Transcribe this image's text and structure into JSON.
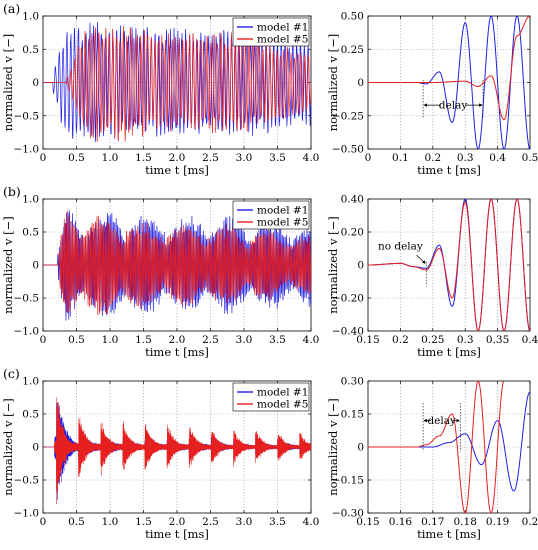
{
  "figure": {
    "rows": [
      {
        "label": "(a)",
        "left": {
          "xlabel": "time t [ms]",
          "ylabel": "normalized v [−]",
          "xlim": [
            0,
            4
          ],
          "ylim": [
            -1,
            1
          ],
          "xticks": [
            "0",
            "0.5",
            "1.0",
            "1.5",
            "2.0",
            "2.5",
            "3.0",
            "3.5",
            "4.0"
          ],
          "yticks": [
            "1.0",
            "0.5",
            "0",
            "−0.5",
            "−1.0"
          ],
          "legend": [
            "model #1",
            "model #5"
          ]
        },
        "right": {
          "xlabel": "time t [ms]",
          "ylabel": "normalized v [−]",
          "xlim": [
            0,
            0.5
          ],
          "ylim": [
            -0.5,
            0.5
          ],
          "xticks": [
            "0",
            "0.1",
            "0.2",
            "0.3",
            "0.4",
            "0.5"
          ],
          "yticks": [
            "0.50",
            "0.25",
            "0",
            "−0.25",
            "−0.50"
          ],
          "annotation": "delay"
        }
      },
      {
        "label": "(b)",
        "left": {
          "xlabel": "time t [ms]",
          "ylabel": "normalized v [−]",
          "xlim": [
            0,
            4
          ],
          "ylim": [
            -1,
            1
          ],
          "xticks": [
            "0",
            "0.5",
            "1.0",
            "1.5",
            "2.0",
            "2.5",
            "3.0",
            "3.5",
            "4.0"
          ],
          "yticks": [
            "1.0",
            "0.5",
            "0",
            "−0.5",
            "−1.0"
          ],
          "legend": [
            "model #1",
            "model #5"
          ]
        },
        "right": {
          "xlabel": "time t [ms]",
          "ylabel": "normalized v [−]",
          "xlim": [
            0.15,
            0.4
          ],
          "ylim": [
            -0.4,
            0.4
          ],
          "xticks": [
            "0.15",
            "0.2",
            "0.25",
            "0.3",
            "0.35",
            "0.4"
          ],
          "yticks": [
            "0.40",
            "0.20",
            "0",
            "−0.20",
            "−0.40"
          ],
          "annotation": "no delay"
        }
      },
      {
        "label": "(c)",
        "left": {
          "xlabel": "time t [ms]",
          "ylabel": "normalized v [−]",
          "xlim": [
            0,
            4
          ],
          "ylim": [
            -1,
            1
          ],
          "xticks": [
            "0",
            "0.5",
            "1.0",
            "1.5",
            "2.0",
            "2.5",
            "3.0",
            "3.5",
            "4.0"
          ],
          "yticks": [
            "1.0",
            "0.5",
            "0",
            "−0.5",
            "−1.0"
          ],
          "legend": [
            "model #1",
            "model #5"
          ]
        },
        "right": {
          "xlabel": "time t [ms]",
          "ylabel": "normalized v [−]",
          "xlim": [
            0.15,
            0.2
          ],
          "ylim": [
            -0.3,
            0.3
          ],
          "xticks": [
            "0.15",
            "0.16",
            "0.17",
            "0.18",
            "0.19",
            "0.2"
          ],
          "yticks": [
            "0.30",
            "0.15",
            "0",
            "−0.15",
            "−0.30"
          ],
          "annotation": "delay"
        }
      }
    ]
  },
  "colors": {
    "model1": "#1f1fe6",
    "model5": "#e61f1f",
    "grid": "#9a9a9a"
  },
  "chart_data": [
    {
      "panel": "a-left",
      "type": "line",
      "xlim": [
        0,
        4
      ],
      "ylim": [
        -1,
        1
      ],
      "grid": true,
      "legend_position": "top-right",
      "series": [
        {
          "name": "model #1",
          "x": [
            0,
            0.1,
            0.2,
            0.3,
            0.5,
            1.0,
            1.5,
            2.0,
            2.5,
            3.0,
            3.5,
            4.0
          ],
          "y_envelope": [
            0,
            0.1,
            0.3,
            0.75,
            0.95,
            0.9,
            0.85,
            0.85,
            0.8,
            0.85,
            0.75,
            0.7
          ]
        },
        {
          "name": "model #5",
          "x": [
            0,
            0.2,
            0.4,
            0.5,
            0.6,
            1.0,
            1.5,
            2.0,
            2.5,
            3.0,
            3.5,
            4.0
          ],
          "y_envelope": [
            0,
            0,
            0.15,
            0.5,
            0.85,
            0.95,
            0.85,
            0.75,
            0.8,
            0.8,
            0.6,
            0.45
          ]
        }
      ]
    },
    {
      "panel": "a-right",
      "type": "line",
      "xlim": [
        0,
        0.5
      ],
      "ylim": [
        -0.5,
        0.5
      ],
      "grid": true,
      "series": [
        {
          "name": "model #1",
          "x": [
            0,
            0.15,
            0.18,
            0.22,
            0.26,
            0.3,
            0.34,
            0.38,
            0.42,
            0.46,
            0.5
          ],
          "y": [
            0,
            0,
            -0.01,
            0.08,
            -0.3,
            0.45,
            -0.5,
            0.5,
            -0.5,
            0.5,
            -0.5
          ]
        },
        {
          "name": "model #5",
          "x": [
            0,
            0.2,
            0.3,
            0.34,
            0.38,
            0.42,
            0.46,
            0.5
          ],
          "y": [
            0,
            0,
            0.01,
            -0.03,
            0.05,
            -0.28,
            0.35,
            0.5
          ]
        }
      ],
      "annotation": "delay"
    },
    {
      "panel": "b-left",
      "type": "line",
      "xlim": [
        0,
        4
      ],
      "ylim": [
        -1,
        1
      ],
      "grid": true,
      "legend_position": "top-right",
      "series": [
        {
          "name": "model #1",
          "x": [
            0,
            0.2,
            0.35,
            0.6,
            1.0,
            1.5,
            2.0,
            2.5,
            3.0,
            3.5,
            4.0
          ],
          "y_envelope": [
            0,
            0.05,
            0.95,
            0.8,
            0.85,
            0.8,
            0.75,
            0.8,
            0.75,
            0.7,
            0.65
          ]
        },
        {
          "name": "model #5",
          "x": [
            0,
            0.2,
            0.35,
            0.6,
            1.0,
            1.5,
            2.0,
            2.5,
            3.0,
            3.5,
            4.0
          ],
          "y_envelope": [
            0,
            0.05,
            0.95,
            0.8,
            0.8,
            0.7,
            0.65,
            0.65,
            0.6,
            0.55,
            0.45
          ]
        }
      ]
    },
    {
      "panel": "b-right",
      "type": "line",
      "xlim": [
        0.15,
        0.4
      ],
      "ylim": [
        -0.4,
        0.4
      ],
      "grid": true,
      "series": [
        {
          "name": "model #1",
          "x": [
            0.15,
            0.2,
            0.22,
            0.24,
            0.26,
            0.28,
            0.3,
            0.32,
            0.34,
            0.36,
            0.38,
            0.4
          ],
          "y": [
            0,
            0.01,
            -0.01,
            -0.02,
            0.12,
            -0.25,
            0.4,
            -0.4,
            0.4,
            -0.4,
            0.4,
            -0.4
          ]
        },
        {
          "name": "model #5",
          "x": [
            0.15,
            0.2,
            0.22,
            0.24,
            0.26,
            0.28,
            0.3,
            0.32,
            0.34,
            0.36,
            0.38,
            0.4
          ],
          "y": [
            0,
            0.01,
            -0.01,
            -0.03,
            0.1,
            -0.2,
            0.38,
            -0.4,
            0.4,
            -0.4,
            0.4,
            -0.4
          ]
        }
      ],
      "annotation": "no delay"
    },
    {
      "panel": "c-left",
      "type": "line",
      "xlim": [
        0,
        4
      ],
      "ylim": [
        -1,
        1
      ],
      "grid": true,
      "legend_position": "top-right",
      "series": [
        {
          "name": "model #1",
          "x": [
            0,
            0.2,
            0.5,
            1.0,
            1.5,
            2.0,
            2.5,
            3.0,
            3.5,
            4.0
          ],
          "y_envelope": [
            0,
            0.95,
            0.3,
            0.25,
            0.2,
            0.2,
            0.2,
            0.15,
            0.15,
            0.15
          ]
        },
        {
          "name": "model #5",
          "x": [
            0,
            0.2,
            0.5,
            0.8,
            1.2,
            1.6,
            2.0,
            2.5,
            3.0,
            3.5,
            4.0
          ],
          "y_envelope": [
            0,
            1.0,
            0.6,
            0.5,
            0.45,
            0.45,
            0.4,
            0.35,
            0.3,
            0.3,
            0.25
          ]
        }
      ]
    },
    {
      "panel": "c-right",
      "type": "line",
      "xlim": [
        0.15,
        0.2
      ],
      "ylim": [
        -0.3,
        0.3
      ],
      "grid": true,
      "series": [
        {
          "name": "model #1",
          "x": [
            0.15,
            0.17,
            0.175,
            0.18,
            0.185,
            0.19,
            0.195,
            0.2
          ],
          "y": [
            0,
            0,
            0.02,
            0.06,
            -0.08,
            0.12,
            -0.2,
            0.25
          ]
        },
        {
          "name": "model #5",
          "x": [
            0.15,
            0.165,
            0.168,
            0.172,
            0.176,
            0.18,
            0.184,
            0.188,
            0.192
          ],
          "y": [
            0,
            0,
            0.01,
            0.05,
            0.15,
            -0.3,
            0.3,
            -0.3,
            0.3
          ]
        }
      ],
      "annotation": "delay"
    }
  ]
}
